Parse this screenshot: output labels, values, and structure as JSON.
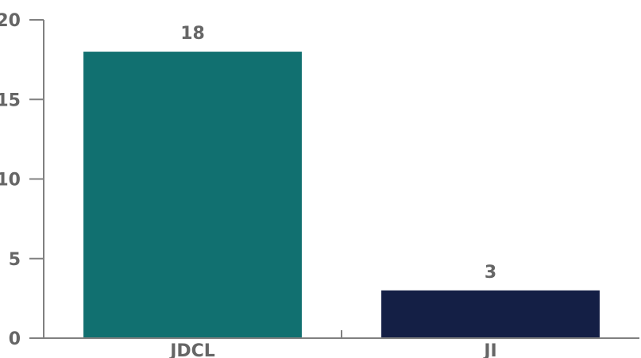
{
  "chart_data": {
    "type": "bar",
    "categories": [
      "JDCL",
      "JI"
    ],
    "values": [
      18,
      3
    ],
    "bar_colors": [
      "#117070",
      "#141f45"
    ],
    "data_labels": [
      "18",
      "3"
    ],
    "yticks": [
      0,
      5,
      10,
      15,
      20
    ],
    "ylim": [
      0,
      20
    ],
    "title": "",
    "xlabel": "",
    "ylabel": "",
    "grid": false,
    "legend": "none"
  },
  "colors": {
    "axis": "#808080",
    "label_text": "#666666"
  }
}
